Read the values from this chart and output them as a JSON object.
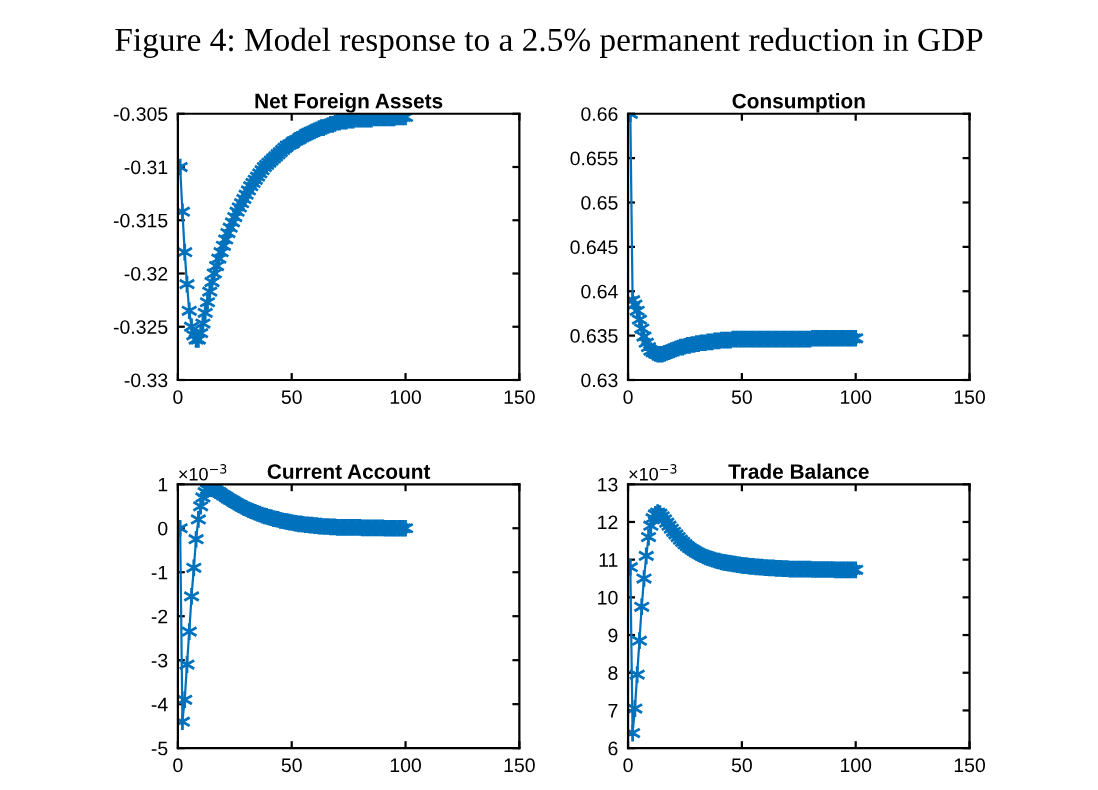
{
  "chart_data": [
    {
      "type": "line",
      "title": "Net Foreign Assets",
      "annotations": [
        "Figure 4: Model response to a 2.5% permanent reduction in GDP"
      ],
      "marker": "cross",
      "line_style": "solid",
      "grid": false,
      "x": [
        1,
        2,
        3,
        4,
        5,
        6,
        7,
        8,
        9,
        10,
        11,
        12,
        13,
        14,
        15,
        16,
        17,
        18,
        19,
        20,
        21,
        22,
        23,
        24,
        25,
        26,
        27,
        28,
        29,
        30,
        31,
        32,
        33,
        34,
        35,
        36,
        37,
        38,
        39,
        40,
        41,
        42,
        43,
        44,
        45,
        46,
        47,
        48,
        49,
        50,
        51,
        52,
        53,
        54,
        55,
        56,
        57,
        58,
        59,
        60,
        61,
        62,
        63,
        64,
        65,
        66,
        67,
        68,
        69,
        70,
        71,
        72,
        73,
        74,
        75,
        76,
        77,
        78,
        79,
        80,
        81,
        82,
        83,
        84,
        85,
        86,
        87,
        88,
        89,
        90,
        91,
        92,
        93,
        94,
        95,
        96,
        97,
        98,
        99,
        100
      ],
      "series": [
        {
          "color": "#0072bd",
          "values": [
            -0.31,
            -0.3142,
            -0.318,
            -0.321,
            -0.3235,
            -0.325,
            -0.3258,
            -0.3262,
            -0.3262,
            -0.3256,
            -0.3247,
            -0.3237,
            -0.3227,
            -0.3217,
            -0.3208,
            -0.32,
            -0.3193,
            -0.3186,
            -0.318,
            -0.3174,
            -0.3168,
            -0.3162,
            -0.3157,
            -0.3152,
            -0.3147,
            -0.3142,
            -0.3138,
            -0.3134,
            -0.313,
            -0.3126,
            -0.3122,
            -0.3118,
            -0.3115,
            -0.3112,
            -0.3109,
            -0.3106,
            -0.3103,
            -0.31,
            -0.3098,
            -0.3096,
            -0.3094,
            -0.3092,
            -0.309,
            -0.3088,
            -0.3086,
            -0.3084,
            -0.3082,
            -0.308,
            -0.3079,
            -0.3078,
            -0.3076,
            -0.3075,
            -0.3074,
            -0.3072,
            -0.3071,
            -0.307,
            -0.3069,
            -0.3068,
            -0.3067,
            -0.3066,
            -0.3065,
            -0.3064,
            -0.3063,
            -0.3063,
            -0.3062,
            -0.3061,
            -0.306,
            -0.306,
            -0.3059,
            -0.3058,
            -0.3058,
            -0.3057,
            -0.3057,
            -0.3057,
            -0.3056,
            -0.3056,
            -0.3056,
            -0.3055,
            -0.3055,
            -0.3055,
            -0.3055,
            -0.3055,
            -0.3055,
            -0.3055,
            -0.3055,
            -0.3054,
            -0.3054,
            -0.3054,
            -0.3054,
            -0.3054,
            -0.3054,
            -0.3054,
            -0.3054,
            -0.3054,
            -0.3054,
            -0.3053,
            -0.3053,
            -0.3053,
            -0.3053,
            -0.3053
          ]
        }
      ],
      "xlim": [
        0,
        150
      ],
      "xticks": [
        0,
        50,
        100,
        150
      ],
      "ylim": [
        -0.33,
        -0.305
      ],
      "yticks": [
        -0.33,
        -0.325,
        -0.32,
        -0.315,
        -0.31,
        -0.305
      ]
    },
    {
      "type": "line",
      "title": "Consumption",
      "marker": "cross",
      "line_style": "solid",
      "grid": false,
      "x": [
        1,
        2,
        3,
        4,
        5,
        6,
        7,
        8,
        9,
        10,
        11,
        12,
        13,
        14,
        15,
        16,
        17,
        18,
        19,
        20,
        21,
        22,
        23,
        24,
        25,
        26,
        27,
        28,
        29,
        30,
        31,
        32,
        33,
        34,
        35,
        36,
        37,
        38,
        39,
        40,
        41,
        42,
        43,
        44,
        45,
        46,
        47,
        48,
        49,
        50,
        51,
        52,
        53,
        54,
        55,
        56,
        57,
        58,
        59,
        60,
        61,
        62,
        63,
        64,
        65,
        66,
        67,
        68,
        69,
        70,
        71,
        72,
        73,
        74,
        75,
        76,
        77,
        78,
        79,
        80,
        81,
        82,
        83,
        84,
        85,
        86,
        87,
        88,
        89,
        90,
        91,
        92,
        93,
        94,
        95,
        96,
        97,
        98,
        99,
        100
      ],
      "series": [
        {
          "color": "#0072bd",
          "values": [
            0.66,
            0.639,
            0.6385,
            0.6378,
            0.6368,
            0.6358,
            0.6349,
            0.6342,
            0.6337,
            0.6333,
            0.6331,
            0.633,
            0.6329,
            0.6329,
            0.6329,
            0.633,
            0.6331,
            0.6332,
            0.6333,
            0.6334,
            0.6335,
            0.6336,
            0.6337,
            0.6337,
            0.6338,
            0.6339,
            0.6339,
            0.634,
            0.634,
            0.6341,
            0.6341,
            0.6342,
            0.6342,
            0.6342,
            0.6343,
            0.6343,
            0.6343,
            0.6344,
            0.6344,
            0.6344,
            0.6345,
            0.6345,
            0.6345,
            0.6345,
            0.6345,
            0.6346,
            0.6346,
            0.6346,
            0.6346,
            0.6346,
            0.6346,
            0.6346,
            0.6346,
            0.6346,
            0.6346,
            0.6346,
            0.6346,
            0.6346,
            0.6346,
            0.6346,
            0.6346,
            0.6346,
            0.6346,
            0.6346,
            0.6346,
            0.6346,
            0.6346,
            0.6346,
            0.6346,
            0.6346,
            0.6346,
            0.6346,
            0.6346,
            0.6346,
            0.6346,
            0.6346,
            0.6346,
            0.6346,
            0.6346,
            0.6346,
            0.6347,
            0.6347,
            0.6347,
            0.6347,
            0.6347,
            0.6347,
            0.6347,
            0.6347,
            0.6347,
            0.6347,
            0.6347,
            0.6347,
            0.6347,
            0.6347,
            0.6347,
            0.6347,
            0.6347,
            0.6347,
            0.6347,
            0.6347
          ]
        }
      ],
      "xlim": [
        0,
        150
      ],
      "xticks": [
        0,
        50,
        100,
        150
      ],
      "ylim": [
        0.63,
        0.66
      ],
      "yticks": [
        0.63,
        0.635,
        0.64,
        0.645,
        0.65,
        0.655,
        0.66
      ]
    },
    {
      "type": "line",
      "title": "Current Account",
      "annotations": [
        "×10$^{−3}$"
      ],
      "marker": "cross",
      "line_style": "solid",
      "grid": false,
      "x": [
        1,
        2,
        3,
        4,
        5,
        6,
        7,
        8,
        9,
        10,
        11,
        12,
        13,
        14,
        15,
        16,
        17,
        18,
        19,
        20,
        21,
        22,
        23,
        24,
        25,
        26,
        27,
        28,
        29,
        30,
        31,
        32,
        33,
        34,
        35,
        36,
        37,
        38,
        39,
        40,
        41,
        42,
        43,
        44,
        45,
        46,
        47,
        48,
        49,
        50,
        51,
        52,
        53,
        54,
        55,
        56,
        57,
        58,
        59,
        60,
        61,
        62,
        63,
        64,
        65,
        66,
        67,
        68,
        69,
        70,
        71,
        72,
        73,
        74,
        75,
        76,
        77,
        78,
        79,
        80,
        81,
        82,
        83,
        84,
        85,
        86,
        87,
        88,
        89,
        90,
        91,
        92,
        93,
        94,
        95,
        96,
        97,
        98,
        99,
        100
      ],
      "series": [
        {
          "color": "#0072bd",
          "values": [
            0.0,
            -4.4,
            -3.9,
            -3.1,
            -2.35,
            -1.55,
            -0.9,
            -0.25,
            0.2,
            0.5,
            0.7,
            0.82,
            0.88,
            0.9,
            0.9,
            0.88,
            0.85,
            0.82,
            0.78,
            0.75,
            0.72,
            0.68,
            0.65,
            0.62,
            0.59,
            0.56,
            0.53,
            0.5,
            0.47,
            0.45,
            0.42,
            0.4,
            0.38,
            0.36,
            0.34,
            0.32,
            0.3,
            0.28,
            0.27,
            0.25,
            0.24,
            0.22,
            0.21,
            0.2,
            0.18,
            0.17,
            0.16,
            0.15,
            0.14,
            0.13,
            0.12,
            0.11,
            0.1,
            0.1,
            0.09,
            0.08,
            0.08,
            0.07,
            0.07,
            0.06,
            0.06,
            0.05,
            0.05,
            0.04,
            0.04,
            0.04,
            0.03,
            0.03,
            0.03,
            0.02,
            0.02,
            0.02,
            0.02,
            0.02,
            0.02,
            0.02,
            0.02,
            0.02,
            0.02,
            0.02,
            0.01,
            0.01,
            0.01,
            0.01,
            0.01,
            0.01,
            0.01,
            0.01,
            0.01,
            0.01,
            0.0,
            0.0,
            0.0,
            0.0,
            0.0,
            0.0,
            0.0,
            0.0,
            0.0,
            0.0
          ]
        }
      ],
      "xlim": [
        0,
        150
      ],
      "xticks": [
        0,
        50,
        100,
        150
      ],
      "ylim": [
        -5,
        1
      ],
      "yticks": [
        -5,
        -4,
        -3,
        -2,
        -1,
        0,
        1
      ]
    },
    {
      "type": "line",
      "title": "Trade Balance",
      "annotations": [
        "×10$^{−3}$"
      ],
      "marker": "cross",
      "line_style": "solid",
      "grid": false,
      "x": [
        1,
        2,
        3,
        4,
        5,
        6,
        7,
        8,
        9,
        10,
        11,
        12,
        13,
        14,
        15,
        16,
        17,
        18,
        19,
        20,
        21,
        22,
        23,
        24,
        25,
        26,
        27,
        28,
        29,
        30,
        31,
        32,
        33,
        34,
        35,
        36,
        37,
        38,
        39,
        40,
        41,
        42,
        43,
        44,
        45,
        46,
        47,
        48,
        49,
        50,
        51,
        52,
        53,
        54,
        55,
        56,
        57,
        58,
        59,
        60,
        61,
        62,
        63,
        64,
        65,
        66,
        67,
        68,
        69,
        70,
        71,
        72,
        73,
        74,
        75,
        76,
        77,
        78,
        79,
        80,
        81,
        82,
        83,
        84,
        85,
        86,
        87,
        88,
        89,
        90,
        91,
        92,
        93,
        94,
        95,
        96,
        97,
        98,
        99,
        100
      ],
      "series": [
        {
          "color": "#0072bd",
          "values": [
            10.8,
            6.4,
            7.05,
            7.95,
            8.85,
            9.75,
            10.5,
            11.1,
            11.6,
            11.9,
            12.1,
            12.2,
            12.25,
            12.22,
            12.15,
            12.07,
            11.98,
            11.9,
            11.82,
            11.74,
            11.67,
            11.6,
            11.53,
            11.47,
            11.41,
            11.36,
            11.31,
            11.27,
            11.23,
            11.19,
            11.16,
            11.13,
            11.1,
            11.07,
            11.05,
            11.03,
            11.01,
            10.99,
            10.97,
            10.96,
            10.94,
            10.93,
            10.92,
            10.91,
            10.9,
            10.89,
            10.88,
            10.87,
            10.86,
            10.85,
            10.84,
            10.84,
            10.83,
            10.82,
            10.82,
            10.81,
            10.81,
            10.8,
            10.8,
            10.79,
            10.79,
            10.78,
            10.78,
            10.78,
            10.77,
            10.77,
            10.77,
            10.76,
            10.76,
            10.76,
            10.75,
            10.75,
            10.75,
            10.75,
            10.75,
            10.75,
            10.75,
            10.75,
            10.75,
            10.75,
            10.74,
            10.74,
            10.74,
            10.74,
            10.74,
            10.74,
            10.74,
            10.74,
            10.74,
            10.74,
            10.73,
            10.73,
            10.73,
            10.73,
            10.73,
            10.73,
            10.73,
            10.73,
            10.73,
            10.73
          ]
        }
      ],
      "xlim": [
        0,
        150
      ],
      "xticks": [
        0,
        50,
        100,
        150
      ],
      "ylim": [
        6,
        13
      ],
      "yticks": [
        6,
        7,
        8,
        9,
        10,
        11,
        12,
        13
      ]
    }
  ]
}
